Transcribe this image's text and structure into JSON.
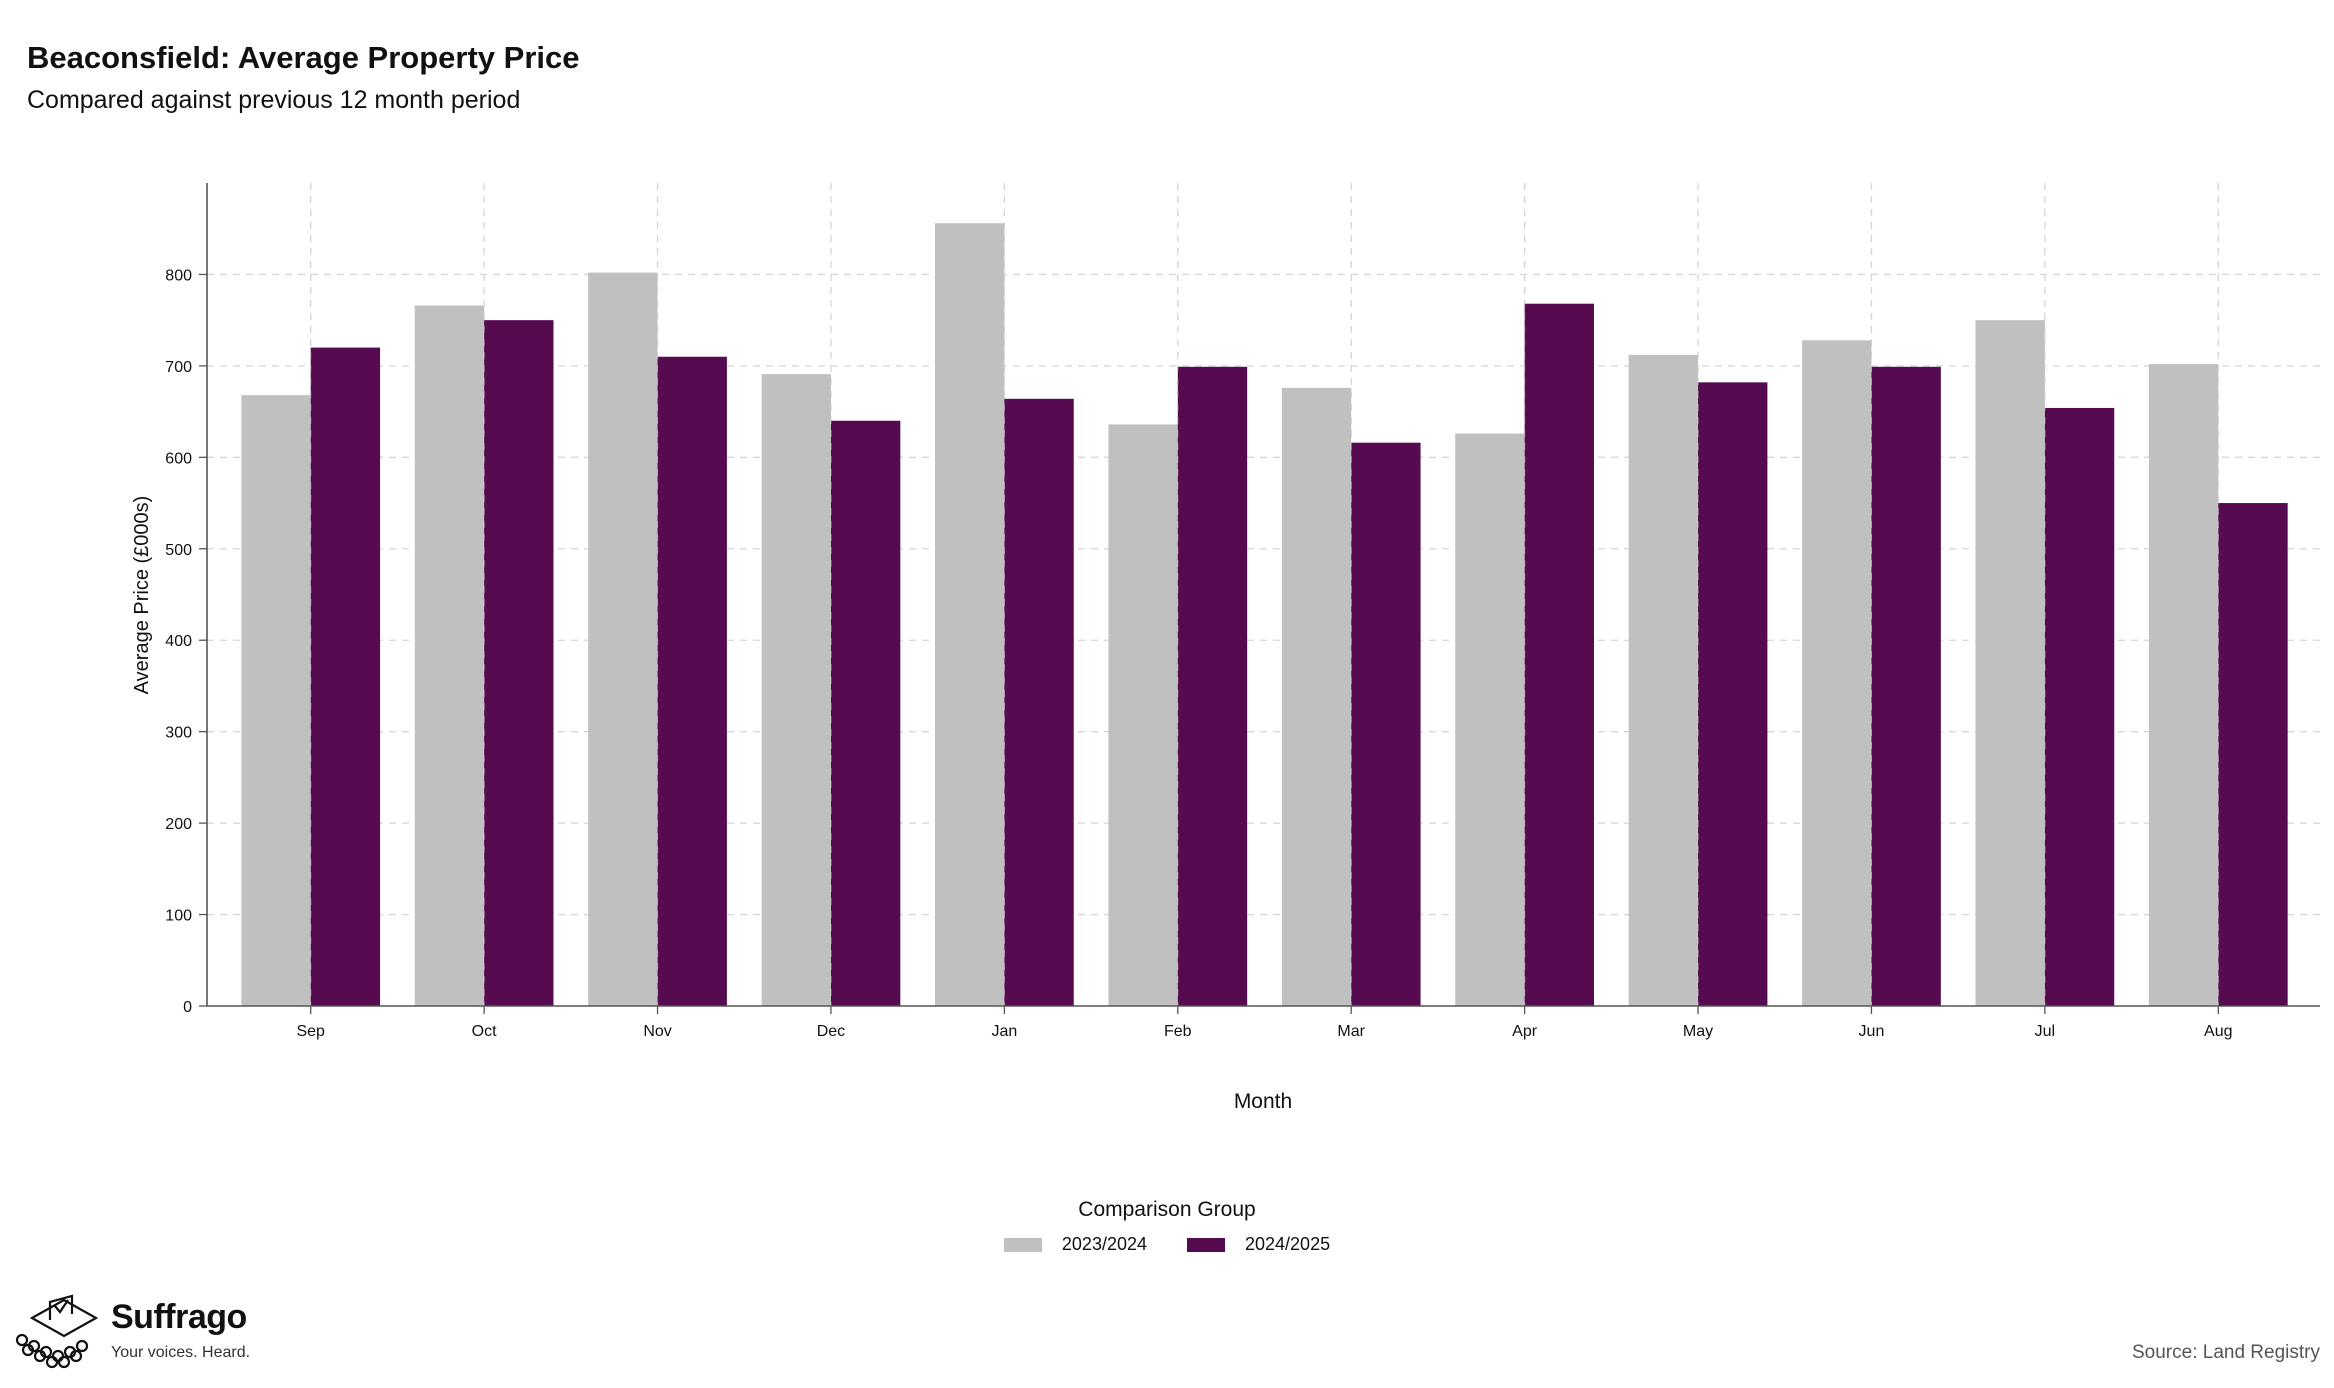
{
  "header": {
    "title": "Beaconsfield: Average Property Price",
    "subtitle": "Compared against previous 12 month period"
  },
  "chart_data": {
    "type": "bar",
    "categories": [
      "Sep",
      "Oct",
      "Nov",
      "Dec",
      "Jan",
      "Feb",
      "Mar",
      "Apr",
      "May",
      "Jun",
      "Jul",
      "Aug"
    ],
    "series": [
      {
        "name": "2023/2024",
        "color": "#c0c0c0",
        "values": [
          668,
          766,
          802,
          691,
          856,
          636,
          676,
          626,
          712,
          728,
          750,
          702
        ]
      },
      {
        "name": "2024/2025",
        "color": "#560b51",
        "values": [
          720,
          750,
          710,
          640,
          664,
          699,
          616,
          768,
          682,
          699,
          654,
          550
        ]
      }
    ],
    "xlabel": "Month",
    "ylabel": "Average Price (£000s)",
    "ylim": [
      0,
      900
    ],
    "yticks": [
      0,
      100,
      200,
      300,
      400,
      500,
      600,
      700,
      800
    ],
    "grid": true,
    "legend_position": "bottom-center"
  },
  "legend": {
    "title": "Comparison Group"
  },
  "footer": {
    "brand": "Suffrago",
    "tagline": "Your voices. Heard.",
    "source": "Source: Land Registry"
  }
}
